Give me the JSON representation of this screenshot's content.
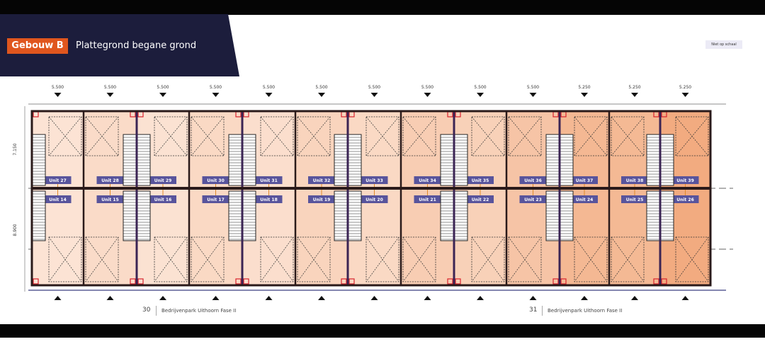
{
  "header": {
    "building": "Gebouw B",
    "title": "Plattegrond begane grond",
    "note": "Niet op schaal"
  },
  "plan": {
    "column_widths": [
      "5.500",
      "5.500",
      "5.500",
      "5.500",
      "5.500",
      "5.500",
      "5.500",
      "5.500",
      "5.500",
      "5.500",
      "5.250",
      "5.250",
      "5.250"
    ],
    "row_depths": [
      "7.150",
      "8.900"
    ],
    "units_top": [
      "Unit 27",
      "Unit 28",
      "Unit 29",
      "Unit 30",
      "Unit 31",
      "Unit 32",
      "Unit 33",
      "Unit 34",
      "Unit 35",
      "Unit 36",
      "Unit 37",
      "Unit 38",
      "Unit 39"
    ],
    "units_bottom": [
      "Unit 14",
      "Unit 15",
      "Unit 16",
      "Unit 17",
      "Unit 18",
      "Unit 19",
      "Unit 20",
      "Unit 21",
      "Unit 22",
      "Unit 23",
      "Unit 24",
      "Unit 25",
      "Unit 26"
    ],
    "colors": {
      "label_bg": "#58549c",
      "wall": "#2a1a1a",
      "fill_light": "#fce6d8",
      "fill_dark": "#f2ab80",
      "door": "#d9232e"
    }
  },
  "footer": {
    "left_page": "30",
    "left_text": "Bedrijvenpark Uithoorn Fase II",
    "right_page": "31",
    "right_text": "Bedrijvenpark Uithoorn Fase II"
  }
}
